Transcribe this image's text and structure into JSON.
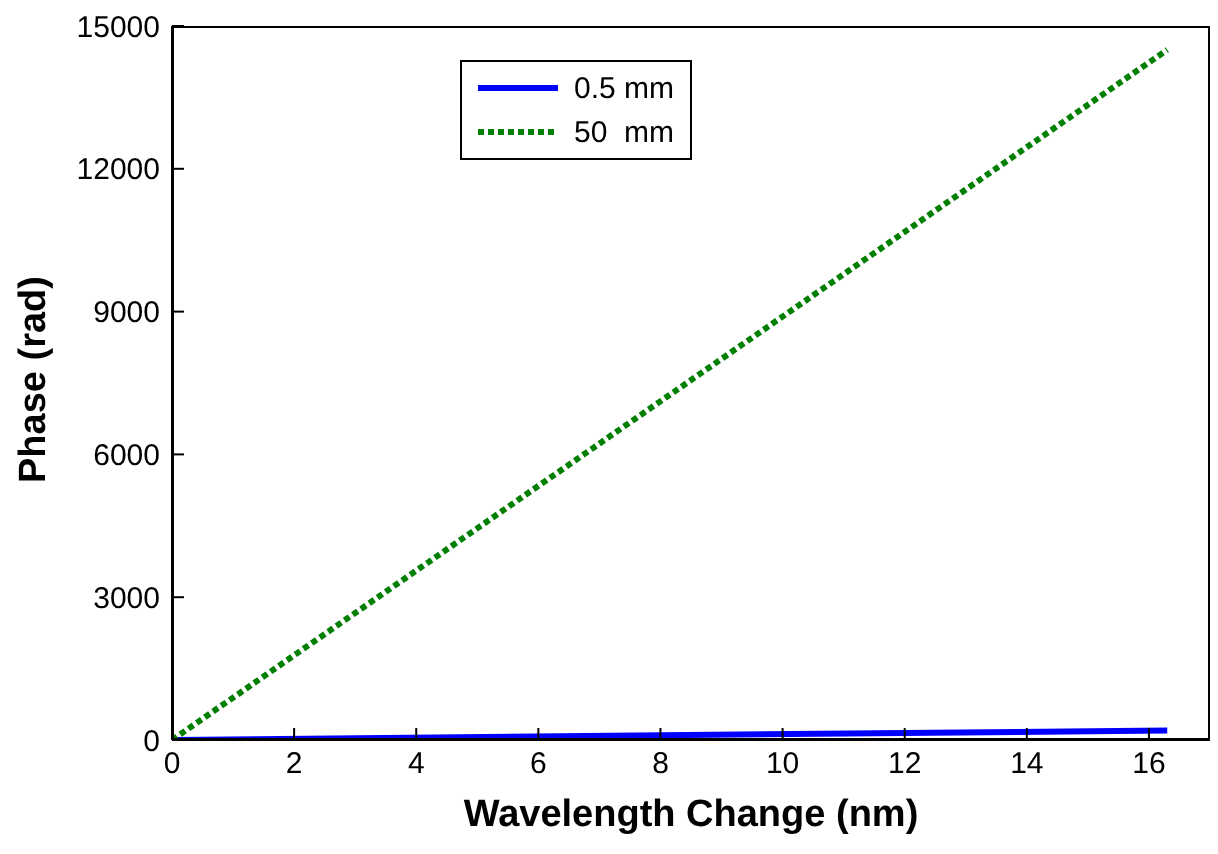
{
  "chart_data": {
    "type": "line",
    "xlabel": "Wavelength Change (nm)",
    "ylabel": "Phase (rad)",
    "xlim": [
      0,
      17
    ],
    "xticks": [
      0,
      2,
      4,
      6,
      8,
      10,
      12,
      14,
      16
    ],
    "ylim": [
      0,
      15000
    ],
    "yticks": [
      0,
      3000,
      6000,
      9000,
      12000,
      15000
    ],
    "legend": "top",
    "marker": "none",
    "x": [
      0,
      16.3
    ],
    "series": [
      {
        "name": "0.5 mm",
        "color": "#0000ff",
        "values": [
          0,
          200
        ],
        "line_style": "solid"
      },
      {
        "name": "50  mm",
        "color": "#007f00",
        "values": [
          0,
          14500
        ],
        "line_style": "dotted"
      }
    ]
  }
}
